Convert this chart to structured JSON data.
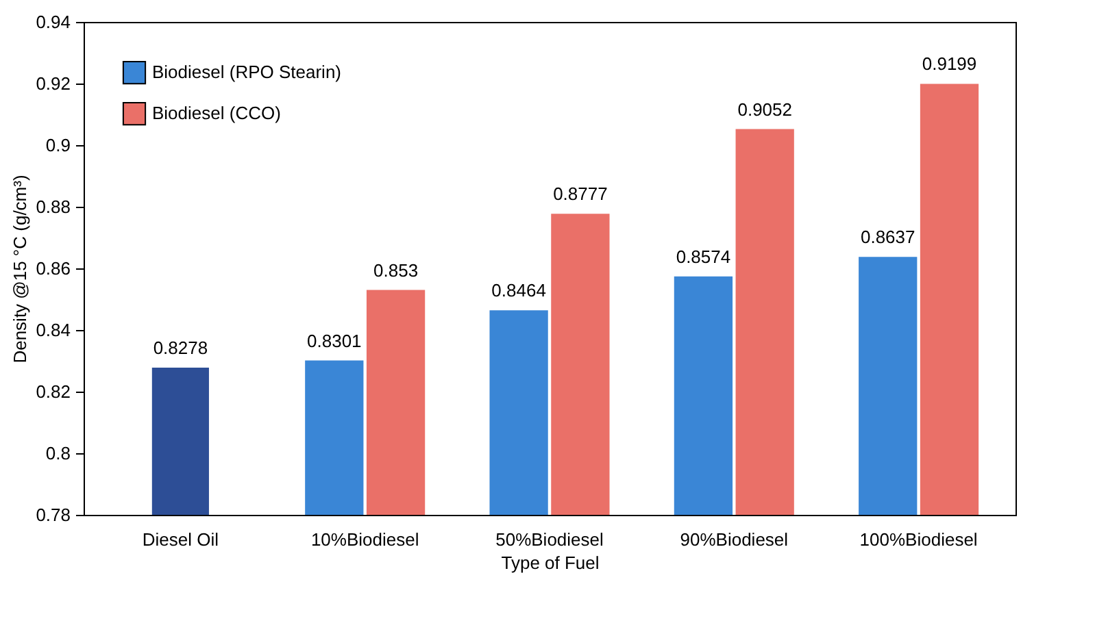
{
  "chart_data": {
    "type": "bar",
    "xlabel": "Type of Fuel",
    "ylabel": "Density @15 °C (g/cm³)",
    "categories": [
      "Diesel Oil",
      "10%Biodiesel",
      "50%Biodiesel",
      "90%Biodiesel",
      "100%Biodiesel"
    ],
    "series": [
      {
        "name": "Biodiesel (RPO Stearin)",
        "color": "#3a86d6",
        "colors": [
          "#2d4e96",
          "#3a86d6",
          "#3a86d6",
          "#3a86d6",
          "#3a86d6"
        ],
        "values": [
          0.8278,
          0.8301,
          0.8464,
          0.8574,
          0.8637
        ]
      },
      {
        "name": "Biodiesel (CCO)",
        "color": "#ea7068",
        "values": [
          null,
          0.853,
          0.8777,
          0.9052,
          0.9199
        ]
      }
    ],
    "ylim": [
      0.78,
      0.94
    ],
    "yticks": [
      0.78,
      0.8,
      0.82,
      0.84,
      0.86,
      0.88,
      0.9,
      0.92,
      0.94
    ],
    "data_labels": true,
    "legend": "top left",
    "grid": false
  }
}
